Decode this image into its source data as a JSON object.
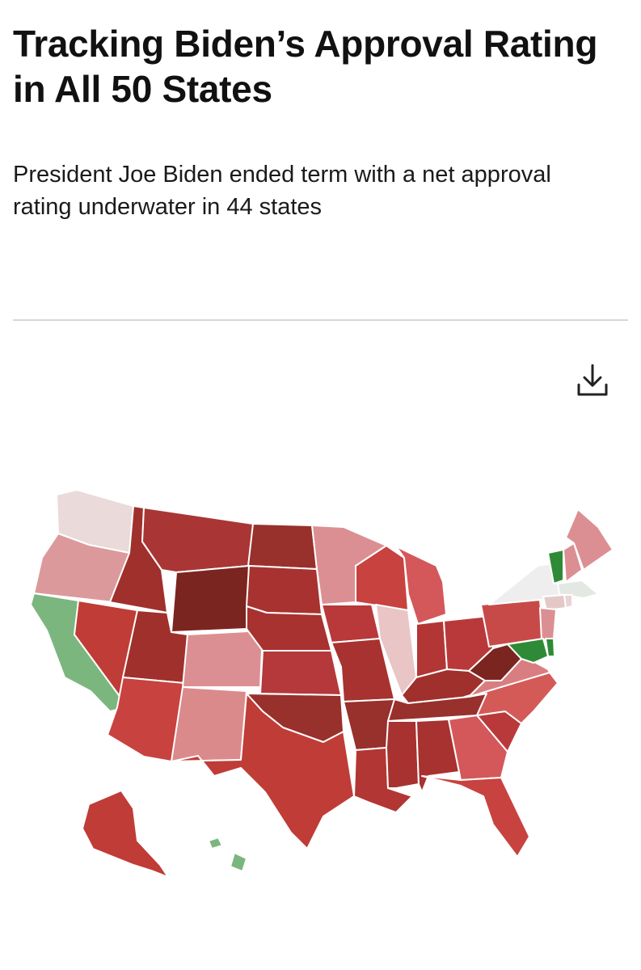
{
  "header": {
    "title": "Tracking Biden’s Approval Rating in All 50 States",
    "subtitle": "President Joe Biden ended term with a net approval rating underwater in 44 states"
  },
  "toolbar": {
    "download_icon": "download-icon"
  },
  "colors": {
    "deep_red": "#7b2520",
    "dark_red": "#a0302c",
    "red": "#c03c37",
    "mid_red": "#d9585a",
    "light_red": "#dc8f92",
    "pale_red": "#ead4d4",
    "neutral": "#eeeeee",
    "light_green": "#7cb67f",
    "green": "#2e8a36",
    "ak_hi_separator": "#efefef"
  },
  "map": {
    "states": [
      {
        "code": "WA",
        "fill": "#eadada"
      },
      {
        "code": "OR",
        "fill": "#dc999c"
      },
      {
        "code": "CA",
        "fill": "#7cb67f"
      },
      {
        "code": "ID",
        "fill": "#a0302c"
      },
      {
        "code": "NV",
        "fill": "#c03c37"
      },
      {
        "code": "MT",
        "fill": "#a93634"
      },
      {
        "code": "WY",
        "fill": "#7b2520"
      },
      {
        "code": "UT",
        "fill": "#a0302c"
      },
      {
        "code": "AZ",
        "fill": "#c8423f"
      },
      {
        "code": "CO",
        "fill": "#dc8f92"
      },
      {
        "code": "NM",
        "fill": "#db8a8c"
      },
      {
        "code": "ND",
        "fill": "#98302c"
      },
      {
        "code": "SD",
        "fill": "#a7322f"
      },
      {
        "code": "NE",
        "fill": "#a7322f"
      },
      {
        "code": "KS",
        "fill": "#b5383a"
      },
      {
        "code": "OK",
        "fill": "#98302c"
      },
      {
        "code": "TX",
        "fill": "#c03c37"
      },
      {
        "code": "MN",
        "fill": "#dc8f92"
      },
      {
        "code": "IA",
        "fill": "#b9393a"
      },
      {
        "code": "MO",
        "fill": "#a7322f"
      },
      {
        "code": "AR",
        "fill": "#98302c"
      },
      {
        "code": "LA",
        "fill": "#b23634"
      },
      {
        "code": "WI",
        "fill": "#c8423f"
      },
      {
        "code": "IL",
        "fill": "#e9c5c6"
      },
      {
        "code": "MI",
        "fill": "#d4575a"
      },
      {
        "code": "IN",
        "fill": "#b23634"
      },
      {
        "code": "OH",
        "fill": "#b9393a"
      },
      {
        "code": "KY",
        "fill": "#a0302c"
      },
      {
        "code": "TN",
        "fill": "#98302c"
      },
      {
        "code": "MS",
        "fill": "#a7322f"
      },
      {
        "code": "AL",
        "fill": "#a7322f"
      },
      {
        "code": "GA",
        "fill": "#d4575a"
      },
      {
        "code": "FL",
        "fill": "#c8423f"
      },
      {
        "code": "SC",
        "fill": "#b9393a"
      },
      {
        "code": "NC",
        "fill": "#d45a58"
      },
      {
        "code": "VA",
        "fill": "#d97e80"
      },
      {
        "code": "WV",
        "fill": "#7b2520"
      },
      {
        "code": "PA",
        "fill": "#c84a48"
      },
      {
        "code": "NY",
        "fill": "#eeeeee"
      },
      {
        "code": "VT",
        "fill": "#2e8a36"
      },
      {
        "code": "NH",
        "fill": "#dc8f92"
      },
      {
        "code": "ME",
        "fill": "#dc8f92"
      },
      {
        "code": "MA",
        "fill": "#e3e8e3"
      },
      {
        "code": "CT",
        "fill": "#e4c8c8"
      },
      {
        "code": "RI",
        "fill": "#ead4d4"
      },
      {
        "code": "NJ",
        "fill": "#dc8f92"
      },
      {
        "code": "DE",
        "fill": "#2e8a36"
      },
      {
        "code": "MD",
        "fill": "#2e8a36"
      },
      {
        "code": "AK",
        "fill": "#c03c37"
      },
      {
        "code": "HI",
        "fill": "#7cb67f"
      }
    ]
  }
}
